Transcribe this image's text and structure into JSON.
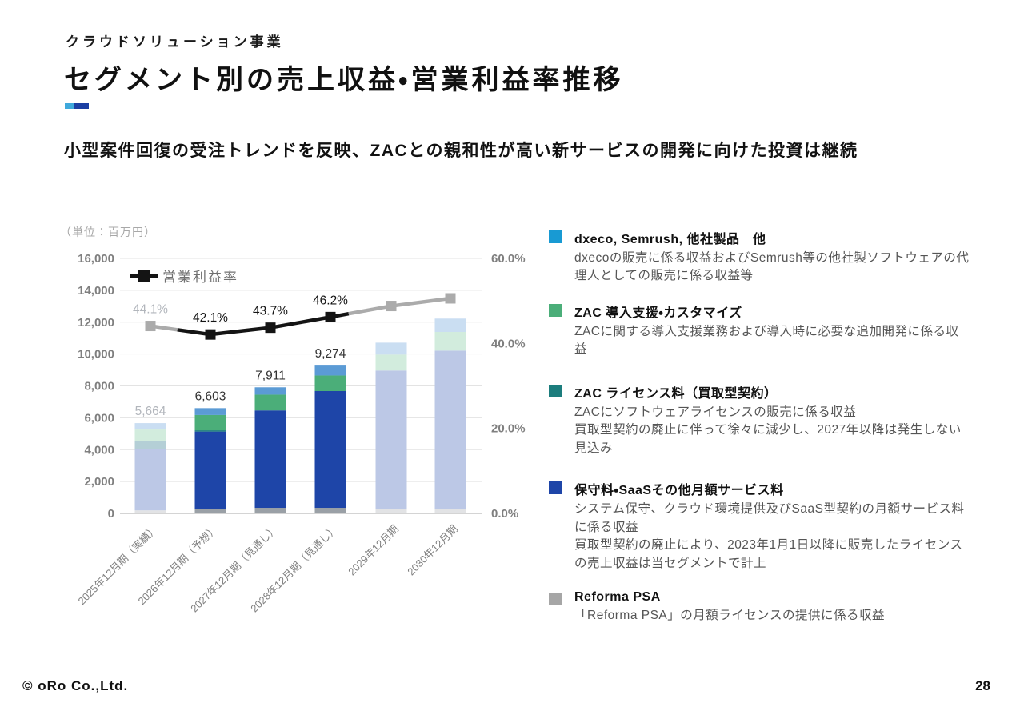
{
  "header": {
    "kicker": "クラウドソリューション事業",
    "title": "セグメント別の売上収益・営業利益率推移",
    "subtitle": "小型案件回復の受注トレンドを反映、ZACとの親和性が高い新サービスの開発に向けた投資は継続",
    "accent_light": "#3fa9dc",
    "accent_dark": "#1b3fa3"
  },
  "chart_data": {
    "type": "stacked-bar-line",
    "unit_label": "（単位：百万円）",
    "categories": [
      "2025年12月期（実績）",
      "2026年12月期（予想）",
      "2027年12月期（見通し）",
      "2028年12月期（見通し）",
      "2029年12月期",
      "2030年12月期"
    ],
    "bar_muted": [
      true,
      false,
      false,
      false,
      true,
      true
    ],
    "bar_series": [
      {
        "name": "Reforma PSA",
        "color_solid": "#9aa0a6",
        "color_pale": "#e2e3e5",
        "values": [
          190,
          300,
          350,
          350,
          250,
          250
        ]
      },
      {
        "name": "保守料・SaaSその他月額サービス料",
        "color_solid": "#1e45a8",
        "color_pale": "#bcc8e6",
        "values": [
          3854,
          4833,
          6111,
          7324,
          8715,
          9965
        ]
      },
      {
        "name": "ZAC ライセンス料（買取型契約）",
        "color_solid": "#1c7d7d",
        "color_pale": "#b4cfd6",
        "values": [
          470,
          80,
          0,
          0,
          0,
          0
        ]
      },
      {
        "name": "ZAC 導入支援・カスタマイズ",
        "color_solid": "#4bae79",
        "color_pale": "#d2ecdd",
        "values": [
          750,
          960,
          990,
          980,
          1000,
          1170
        ]
      },
      {
        "name": "dxeco, Semrush, 他社製品 他",
        "color_solid": "#5b9bd5",
        "color_pale": "#cadef2",
        "values": [
          400,
          430,
          460,
          620,
          750,
          840
        ]
      }
    ],
    "bar_totals_labels": [
      "5,664",
      "6,603",
      "7,911",
      "9,274",
      "",
      ""
    ],
    "line_series": {
      "name": "営業利益率",
      "values_pct": [
        44.1,
        42.1,
        43.7,
        46.2,
        48.8,
        50.6
      ],
      "labels": [
        "44.1%",
        "42.1%",
        "43.7%",
        "46.2%",
        "",
        ""
      ],
      "label_muted": [
        true,
        false,
        false,
        false,
        false,
        false
      ],
      "black_range": [
        1,
        3
      ],
      "color_black": "#141414",
      "color_gray": "#ababab"
    },
    "left_axis": {
      "max": 16000,
      "step": 2000,
      "ticks": [
        "16,000",
        "14,000",
        "12,000",
        "10,000",
        "8,000",
        "6,000",
        "4,000",
        "2,000",
        "0"
      ]
    },
    "right_axis": {
      "max_pct": 60,
      "ticks": [
        "60.0%",
        "40.0%",
        "20.0%",
        "0.0%"
      ]
    },
    "grid": true,
    "legend_position": "top-left-inside"
  },
  "legend": {
    "items": [
      {
        "color": "#189ad3",
        "title": "dxeco, Semrush, 他社製品　他",
        "desc": "dxecoの販売に係る収益およびSemrush等の他社製ソフトウェアの代理人としての販売に係る収益等"
      },
      {
        "color": "#4bae79",
        "title": "ZAC 導入支援・カスタマイズ",
        "desc": "ZACに関する導入支援業務および導入時に必要な追加開発に係る収益"
      },
      {
        "color": "#1c7d7d",
        "title": "ZAC ライセンス料（買取型契約）",
        "desc": "ZACにソフトウェアライセンスの販売に係る収益\n買取型契約の廃止に伴って徐々に減少し、2027年以降は発生しない見込み"
      },
      {
        "color": "#1e45a8",
        "title": "保守料・SaaSその他月額サービス料",
        "desc": "システム保守、クラウド環境提供及びSaaS型契約の月額サービス料に係る収益\n買取型契約の廃止により、2023年1月1日以降に販売したライセンスの売上収益は当セグメントで計上"
      },
      {
        "color": "#a6a6a6",
        "title": "Reforma PSA",
        "desc": "「Reforma PSA」の月額ライセンスの提供に係る収益"
      }
    ]
  },
  "footer": {
    "logo": "© oRo Co.,Ltd.",
    "page_number": "28"
  }
}
